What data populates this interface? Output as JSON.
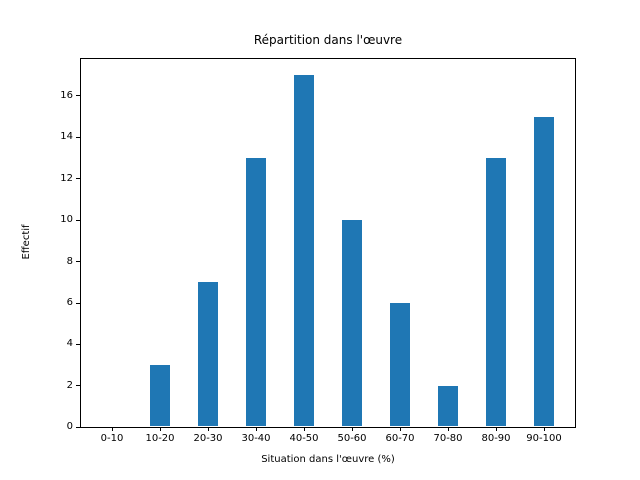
{
  "chart_data": {
    "type": "bar",
    "title": "Répartition dans l'œuvre",
    "xlabel": "Situation dans l'œuvre (%)",
    "ylabel": "Effectif",
    "categories": [
      "0-10",
      "10-20",
      "20-30",
      "30-40",
      "40-50",
      "50-60",
      "60-70",
      "70-80",
      "80-90",
      "90-100"
    ],
    "values": [
      0,
      3,
      7,
      13,
      17,
      10,
      6,
      2,
      13,
      15
    ],
    "y_ticks": [
      0,
      2,
      4,
      6,
      8,
      10,
      12,
      14,
      16
    ],
    "ylim": [
      0,
      17.85
    ],
    "xlim": [
      -0.667,
      9.667
    ],
    "bar_width": 0.4,
    "bar_color": "#1f77b4",
    "axis_color": "#000000",
    "background_color": "#ffffff",
    "grid": "off",
    "legend": "none"
  }
}
